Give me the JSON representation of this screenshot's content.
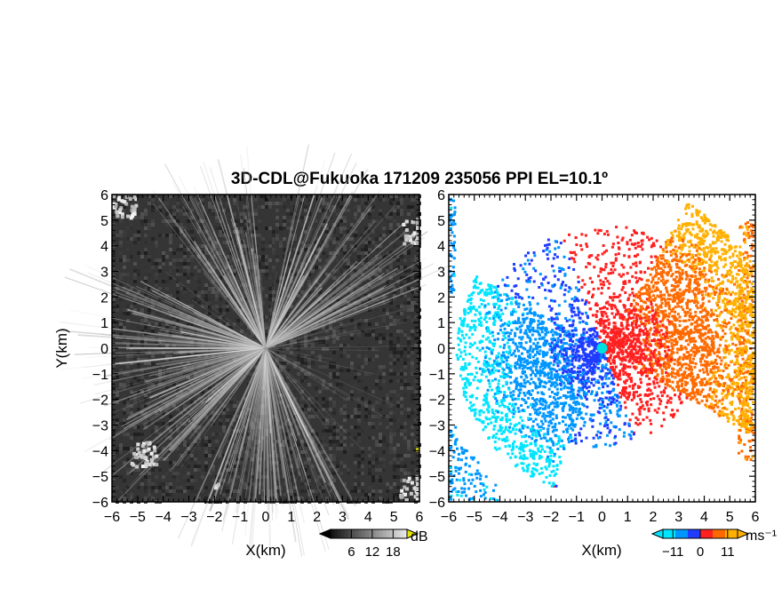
{
  "title": "3D-CDL@Fukuoka 171209 235056 PPI EL=10.1º",
  "chart_data": [
    {
      "type": "heatmap",
      "name": "reflectivity",
      "xlabel": "X(km)",
      "ylabel": "Y(km)",
      "xlim": [
        -6,
        6
      ],
      "ylim": [
        -6,
        6
      ],
      "xticks": [
        "−6",
        "−5",
        "−4",
        "−3",
        "−2",
        "−1",
        "0",
        "1",
        "2",
        "3",
        "4",
        "5",
        "6"
      ],
      "yticks": [
        "−6",
        "−5",
        "−4",
        "−3",
        "−2",
        "−1",
        "0",
        "1",
        "2",
        "3",
        "4",
        "5",
        "6"
      ],
      "colormap": "grayscale",
      "colorbar": {
        "unit": "dB",
        "tick_labels": [
          "6",
          "12",
          "18"
        ],
        "ticks": [
          6,
          12,
          18
        ],
        "range": [
          0,
          22
        ],
        "under_color": "#000000",
        "over_color": "#e6e600"
      },
      "features": {
        "center": [
          0,
          0
        ],
        "background_color": "#353535",
        "ray_color": "#bfbfbf",
        "ray_sectors_deg": [
          [
            20,
            55
          ],
          [
            60,
            80
          ],
          [
            95,
            130
          ],
          [
            150,
            200
          ],
          [
            200,
            235
          ],
          [
            245,
            300
          ]
        ],
        "bright_patches": [
          {
            "x": -4.8,
            "y": -4.1,
            "note": "light clutter lower-left"
          },
          {
            "x": 5.7,
            "y": -5.4,
            "note": "clutter lower-right"
          },
          {
            "x": -5.6,
            "y": 5.6,
            "note": "clutter upper-left"
          },
          {
            "x": 5.8,
            "y": 4.6,
            "note": "clutter upper-right"
          },
          {
            "x": -2.0,
            "y": -5.3,
            "note": "small spot"
          }
        ]
      }
    },
    {
      "type": "heatmap",
      "name": "doppler_velocity",
      "xlabel": "X(km)",
      "ylabel": "",
      "xlim": [
        -6,
        6
      ],
      "ylim": [
        -6,
        6
      ],
      "xticks": [
        "−6",
        "−5",
        "−4",
        "−3",
        "−2",
        "−1",
        "0",
        "1",
        "2",
        "3",
        "4",
        "5",
        "6"
      ],
      "yticks": [
        "−6",
        "−5",
        "−4",
        "−3",
        "−2",
        "−1",
        "0",
        "1",
        "2",
        "3",
        "4",
        "5",
        "6"
      ],
      "colormap": "diverging blue-red-orange",
      "colorbar": {
        "unit": "ms⁻¹",
        "tick_labels": [
          "−11",
          "0",
          "11"
        ],
        "ticks": [
          -11,
          0,
          11
        ],
        "range": [
          -15,
          15
        ],
        "under_color": "#00e5ff",
        "over_color": "#ffb000",
        "gradient": [
          "#00e5ff",
          "#0096ff",
          "#1f3cff",
          "#ff2020",
          "#ff6a00",
          "#ffb000"
        ]
      },
      "features": {
        "center": [
          0,
          0
        ],
        "radar_marker_color": "#00e0e0",
        "approaching_sector_deg": [
          150,
          250
        ],
        "receding_sector_deg": [
          -30,
          60
        ],
        "edge_strips": [
          {
            "x_from": -6,
            "x_to": -4.0,
            "y_from": -6,
            "y_to": -3.0,
            "value": -9
          },
          {
            "x_from": -6,
            "x_to": -5.7,
            "y_from": 2.0,
            "y_to": 6,
            "value": -9
          },
          {
            "x_from": 5.3,
            "x_to": 6,
            "y_from": -4.5,
            "y_to": 5.0,
            "value": 9
          }
        ],
        "small_spot": {
          "x": -1.95,
          "y": -5.3,
          "value": 2
        }
      }
    }
  ]
}
